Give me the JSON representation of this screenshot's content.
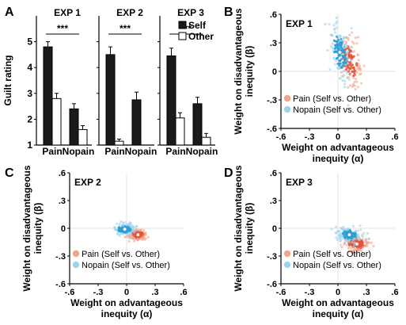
{
  "panel_letters": [
    "A",
    "B",
    "C",
    "D"
  ],
  "colors": {
    "self": "#1a1a1a",
    "other": "#ffffff",
    "pain": "#e0553a",
    "pain_light": "#f2a58a",
    "nopain": "#2a9fd6",
    "nopain_light": "#9dd3ef"
  },
  "chart_data": [
    {
      "type": "bar",
      "panel": "A",
      "ylabel": "Guilt rating",
      "ylim": [
        1,
        6
      ],
      "yticks": [
        "1",
        "2",
        "3",
        "4",
        "5"
      ],
      "legend": [
        "Self",
        "Other"
      ],
      "significance": "***",
      "groups": [
        {
          "title": "EXP 1",
          "categories": [
            "Pain",
            "Nopain"
          ],
          "series": [
            {
              "name": "Self",
              "values": [
                4.8,
                2.4
              ],
              "errors": [
                0.2,
                0.2
              ]
            },
            {
              "name": "Other",
              "values": [
                2.8,
                1.6
              ],
              "errors": [
                0.2,
                0.15
              ]
            }
          ]
        },
        {
          "title": "EXP 2",
          "categories": [
            "Pain",
            "Nopain"
          ],
          "series": [
            {
              "name": "Self",
              "values": [
                4.5,
                2.75
              ],
              "errors": [
                0.3,
                0.3
              ]
            },
            {
              "name": "Other",
              "values": [
                1.15,
                null
              ],
              "errors": [
                0.08,
                null
              ]
            }
          ]
        },
        {
          "title": "EXP 3",
          "categories": [
            "Pain",
            "Nopain"
          ],
          "series": [
            {
              "name": "Self",
              "values": [
                4.45,
                2.6
              ],
              "errors": [
                0.3,
                0.25
              ]
            },
            {
              "name": "Other",
              "values": [
                2.05,
                1.3
              ],
              "errors": [
                0.2,
                0.15
              ]
            }
          ]
        }
      ]
    },
    {
      "type": "scatter",
      "panel": "B",
      "title": "EXP 1",
      "xlabel": "Weight on advantageous inequity (α)",
      "ylabel": "Weight on disadvantageous inequity (β)",
      "xlim": [
        -0.6,
        0.6
      ],
      "ylim": [
        -0.6,
        0.6
      ],
      "xticks": [
        "-.6",
        "-.3",
        "0",
        ".3",
        ".6"
      ],
      "yticks": [
        ".6",
        ".3",
        "0",
        "-.3",
        "-.6"
      ],
      "legend_placement": "bottom-right",
      "series": [
        {
          "name": "Pain (Self vs. Other)",
          "center": [
            0.12,
            0.12
          ],
          "spread": [
            0.06,
            0.14
          ],
          "tilt": -0.55
        },
        {
          "name": "Nopain (Self vs. Other)",
          "center": [
            0.02,
            0.2
          ],
          "spread": [
            0.05,
            0.15
          ],
          "tilt": -0.35
        }
      ]
    },
    {
      "type": "scatter",
      "panel": "C",
      "title": "EXP 2",
      "xlabel": "Weight on advantageous inequity (α)",
      "ylabel": "Weight on disadvantageous inequity (β)",
      "xlim": [
        -0.6,
        0.6
      ],
      "ylim": [
        -0.6,
        0.6
      ],
      "xticks": [
        "-.6",
        "-.3",
        "0",
        ".3",
        ".6"
      ],
      "yticks": [
        ".6",
        ".3",
        "0",
        "-.3",
        "-.6"
      ],
      "legend_placement": "bottom-right",
      "series": [
        {
          "name": "Pain (Self vs. Other)",
          "center": [
            0.12,
            -0.07
          ],
          "spread": [
            0.05,
            0.03
          ],
          "tilt": 0.0
        },
        {
          "name": "Nopain (Self vs. Other)",
          "center": [
            -0.02,
            -0.01
          ],
          "spread": [
            0.06,
            0.03
          ],
          "tilt": 0.0
        }
      ]
    },
    {
      "type": "scatter",
      "panel": "D",
      "title": "EXP 3",
      "xlabel": "Weight on advantageous inequity (α)",
      "ylabel": "Weight on disadvantageous inequity (β)",
      "xlim": [
        -0.6,
        0.6
      ],
      "ylim": [
        -0.6,
        0.6
      ],
      "xticks": [
        "-.6",
        "-.3",
        "0",
        ".3",
        ".6"
      ],
      "yticks": [
        ".6",
        ".3",
        "0",
        "-.3",
        "-.6"
      ],
      "legend_placement": "bottom-right",
      "series": [
        {
          "name": "Pain (Self vs. Other)",
          "center": [
            0.2,
            -0.17
          ],
          "spread": [
            0.07,
            0.04
          ],
          "tilt": 0.0
        },
        {
          "name": "Nopain (Self vs. Other)",
          "center": [
            0.12,
            -0.07
          ],
          "spread": [
            0.07,
            0.04
          ],
          "tilt": 0.0
        }
      ]
    }
  ]
}
